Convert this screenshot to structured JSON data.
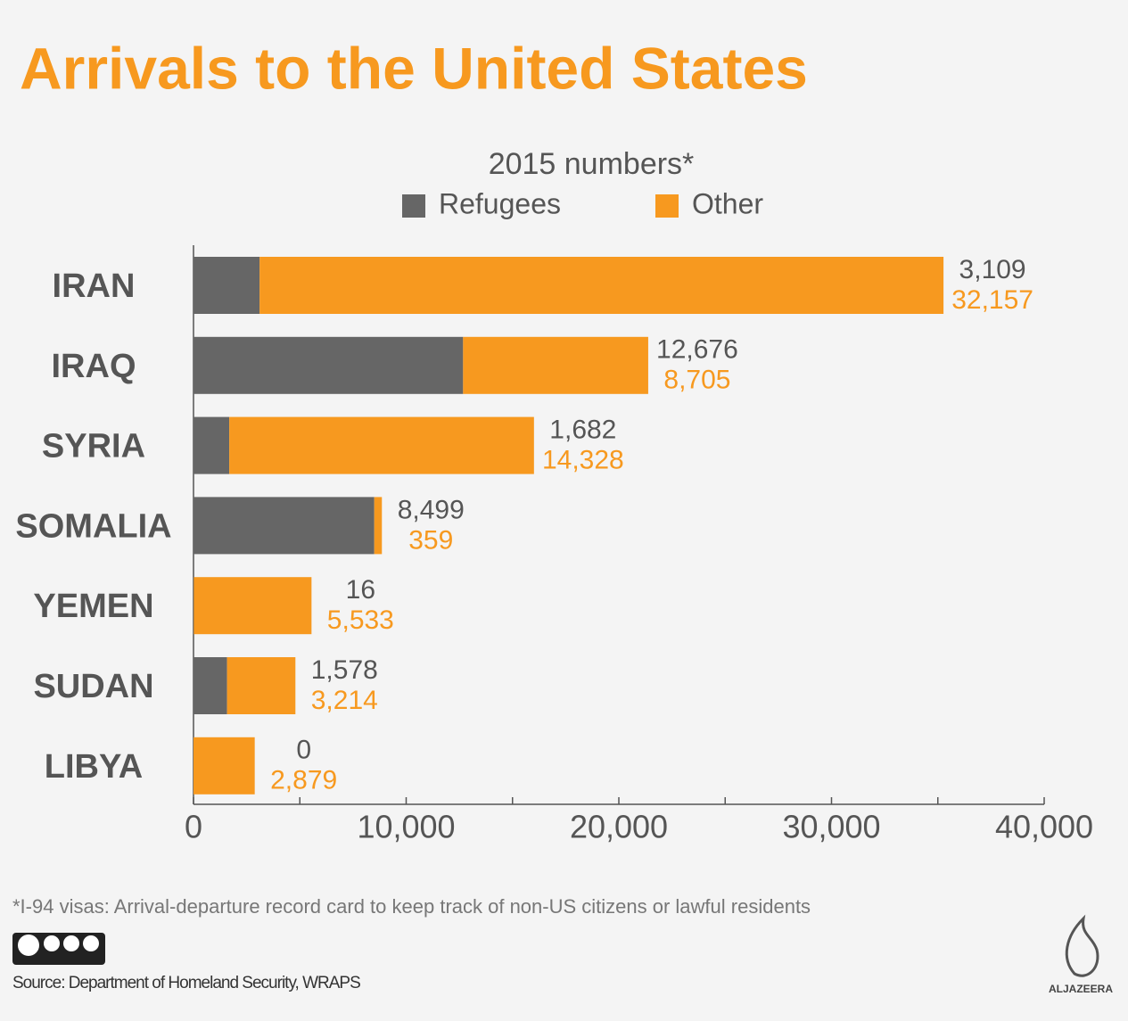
{
  "chart_data": {
    "type": "stacked_barh",
    "title": "Arrivals to the United States",
    "subtitle": "2015 numbers*",
    "categories": [
      "IRAN",
      "IRAQ",
      "SYRIA",
      "SOMALIA",
      "YEMEN",
      "SUDAN",
      "LIBYA"
    ],
    "series": [
      {
        "name": "Refugees",
        "color": "#666666",
        "values": [
          3109,
          12676,
          1682,
          8499,
          16,
          1578,
          0
        ],
        "value_labels": [
          "3,109",
          "12,676",
          "1,682",
          "8,499",
          "16",
          "1,578",
          "0"
        ]
      },
      {
        "name": "Other",
        "color": "#f7991f",
        "values": [
          32157,
          8705,
          14328,
          359,
          5533,
          3214,
          2879
        ],
        "value_labels": [
          "32,157",
          "8,705",
          "14,328",
          "359",
          "5,533",
          "3,214",
          "2,879"
        ]
      }
    ],
    "xlim": [
      0,
      40000
    ],
    "xticks": [
      0,
      {
        "value": 10000,
        "label": "10,000"
      },
      {
        "value": 20000,
        "label": "20,000"
      },
      {
        "value": 30000,
        "label": "30,000"
      },
      {
        "value": 40000,
        "label": "40,000"
      }
    ],
    "minor_xticks": [
      5000,
      15000,
      25000,
      35000
    ],
    "footnote": "*I-94 visas: Arrival-departure record card to keep track of non-US citizens or lawful residents",
    "source": "Source: Department of Homeland Security, WRAPS",
    "logo": "ALJAZEERA"
  }
}
